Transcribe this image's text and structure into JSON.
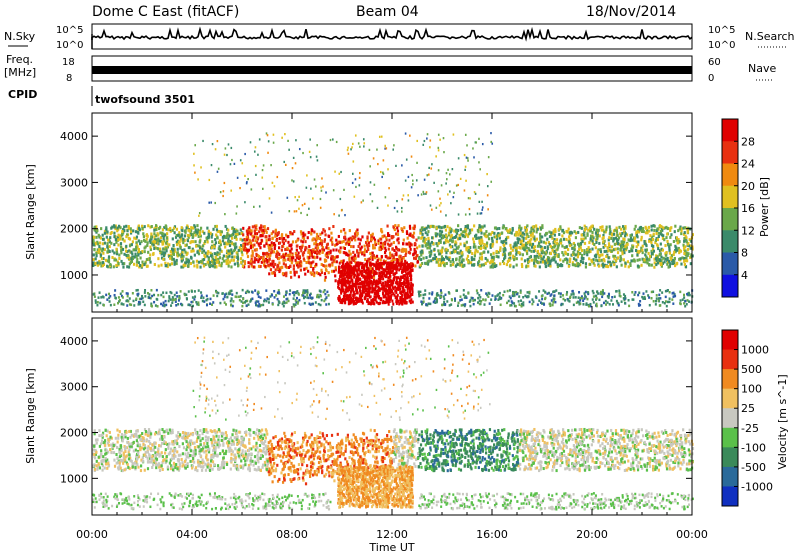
{
  "header": {
    "station": "Dome C East (fitACF)",
    "beam": "Beam 04",
    "date": "18/Nov/2014"
  },
  "status_panels": {
    "nsky_label": "N.Sky",
    "nsky_ticks": [
      "10^5",
      "10^0"
    ],
    "nsearch_label": "N.Search",
    "freq_label_1": "Freq.",
    "freq_label_2": "[MHz]",
    "freq_ticks": [
      "18",
      "8"
    ],
    "nave_label": "Nave",
    "nave_ticks": [
      "60",
      "0"
    ],
    "cpid_label": "CPID",
    "cpid_value": "twofsound 3501"
  },
  "chart_data": [
    {
      "type": "heatmap",
      "name": "power",
      "ylabel": "Slant Range [km]",
      "ylim": [
        200,
        4500
      ],
      "yticks": [
        "1000",
        "2000",
        "3000",
        "4000"
      ],
      "xlim": [
        0,
        24
      ],
      "colorbar_label": "Power [dB]",
      "colorbar_ticks": [
        "4",
        "8",
        "12",
        "16",
        "20",
        "24",
        "28"
      ],
      "colorbar_values": [
        4,
        8,
        12,
        16,
        20,
        24,
        28
      ],
      "colorbar_range": [
        0,
        32
      ],
      "colors": [
        "#1010e0",
        "#2a5aa8",
        "#3a8a6a",
        "#6aa84a",
        "#e0c020",
        "#f08a10",
        "#e83010",
        "#e00000"
      ]
    },
    {
      "type": "heatmap",
      "name": "velocity",
      "ylabel": "Slant Range [km]",
      "ylim": [
        200,
        4500
      ],
      "yticks": [
        "1000",
        "2000",
        "3000",
        "4000"
      ],
      "xlim": [
        0,
        24
      ],
      "colorbar_label": "Velocity [m s^-1]",
      "colorbar_ticks": [
        "1000",
        "500",
        "100",
        "25",
        "-25",
        "-100",
        "-500",
        "-1000"
      ],
      "colors": [
        "#1030c0",
        "#2a6a9a",
        "#3a8a5a",
        "#5ac04a",
        "#c8c8c0",
        "#f0c060",
        "#f08a20",
        "#e83010",
        "#e00000"
      ]
    }
  ],
  "xaxis": {
    "ticks": [
      "00:00",
      "04:00",
      "08:00",
      "12:00",
      "16:00",
      "20:00",
      "00:00"
    ],
    "tick_hours": [
      0,
      4,
      8,
      12,
      16,
      20,
      24
    ],
    "label": "Time UT"
  }
}
